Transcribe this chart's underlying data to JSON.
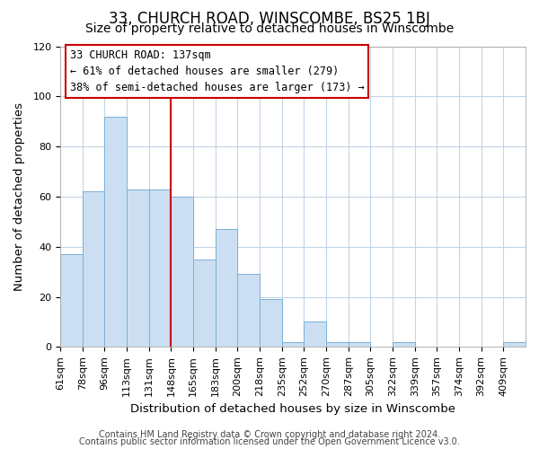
{
  "title": "33, CHURCH ROAD, WINSCOMBE, BS25 1BJ",
  "subtitle": "Size of property relative to detached houses in Winscombe",
  "xlabel": "Distribution of detached houses by size in Winscombe",
  "ylabel": "Number of detached properties",
  "bar_labels": [
    "61sqm",
    "78sqm",
    "96sqm",
    "113sqm",
    "131sqm",
    "148sqm",
    "165sqm",
    "183sqm",
    "200sqm",
    "218sqm",
    "235sqm",
    "252sqm",
    "270sqm",
    "287sqm",
    "305sqm",
    "322sqm",
    "339sqm",
    "357sqm",
    "374sqm",
    "392sqm",
    "409sqm"
  ],
  "bar_values": [
    37,
    62,
    92,
    63,
    63,
    60,
    35,
    47,
    29,
    19,
    2,
    10,
    2,
    2,
    0,
    2,
    0,
    0,
    0,
    0,
    2
  ],
  "bar_color": "#ccdff2",
  "bar_edge_color": "#7bafd4",
  "vline_x": 5.0,
  "vline_color": "#cc0000",
  "ylim": [
    0,
    120
  ],
  "annotation_title": "33 CHURCH ROAD: 137sqm",
  "annotation_line1": "← 61% of detached houses are smaller (279)",
  "annotation_line2": "38% of semi-detached houses are larger (173) →",
  "annotation_box_color": "#ffffff",
  "annotation_box_edge": "#cc0000",
  "footer_line1": "Contains HM Land Registry data © Crown copyright and database right 2024.",
  "footer_line2": "Contains public sector information licensed under the Open Government Licence v3.0.",
  "bg_color": "#ffffff",
  "grid_color": "#c0d4e8",
  "title_fontsize": 12,
  "subtitle_fontsize": 10,
  "axis_label_fontsize": 9.5,
  "tick_fontsize": 8,
  "footer_fontsize": 7,
  "annotation_fontsize": 8.5
}
